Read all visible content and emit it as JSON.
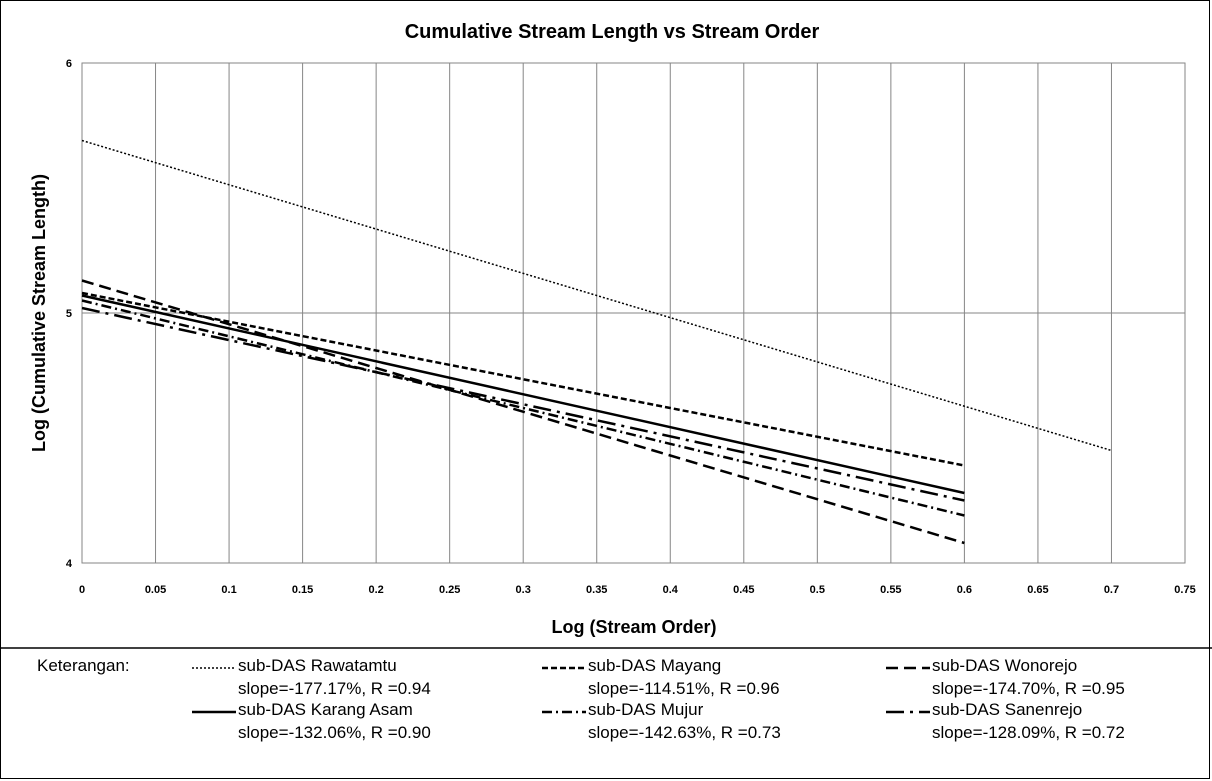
{
  "chart_data": {
    "type": "line",
    "title": "Cumulative Stream Length vs Stream Order",
    "xlabel": "Log (Stream Order)",
    "ylabel": "Log (Cumulative Stream Length)",
    "xlim": [
      0,
      0.75
    ],
    "ylim": [
      4,
      6
    ],
    "x_ticks": [
      "0",
      "0.05",
      "0.1",
      "0.15",
      "0.2",
      "0.25",
      "0.3",
      "0.35",
      "0.4",
      "0.45",
      "0.5",
      "0.55",
      "0.6",
      "0.65",
      "0.7",
      "0.75"
    ],
    "y_ticks": [
      "4",
      "5",
      "6"
    ],
    "grid": true,
    "legend_position": "bottom",
    "series": [
      {
        "name": "sub-DAS Rawatamtu",
        "stats": "slope=-177.17%, R =0.94",
        "style": "dotted",
        "x": [
          0,
          0.7
        ],
        "y": [
          5.69,
          4.45
        ]
      },
      {
        "name": "sub-DAS Mayang",
        "stats": "slope=-114.51%, R =0.96",
        "style": "short-dash",
        "x": [
          0,
          0.6
        ],
        "y": [
          5.08,
          4.39
        ]
      },
      {
        "name": "sub-DAS Wonorejo",
        "stats": "slope=-174.70%, R =0.95",
        "style": "long-dash",
        "x": [
          0,
          0.6
        ],
        "y": [
          5.13,
          4.08
        ]
      },
      {
        "name": "sub-DAS Karang Asam",
        "stats": "slope=-132.06%, R =0.90",
        "style": "solid",
        "x": [
          0,
          0.6
        ],
        "y": [
          5.07,
          4.28
        ]
      },
      {
        "name": "sub-DAS Mujur",
        "stats": "slope=-142.63%, R =0.73",
        "style": "dash-dot",
        "x": [
          0,
          0.6
        ],
        "y": [
          5.05,
          4.19
        ]
      },
      {
        "name": "sub-DAS Sanenrejo",
        "stats": "slope=-128.09%, R =0.72",
        "style": "long-dash-dot",
        "x": [
          0,
          0.6
        ],
        "y": [
          5.02,
          4.25
        ]
      }
    ]
  },
  "legend": {
    "title": "Keterangan:"
  }
}
